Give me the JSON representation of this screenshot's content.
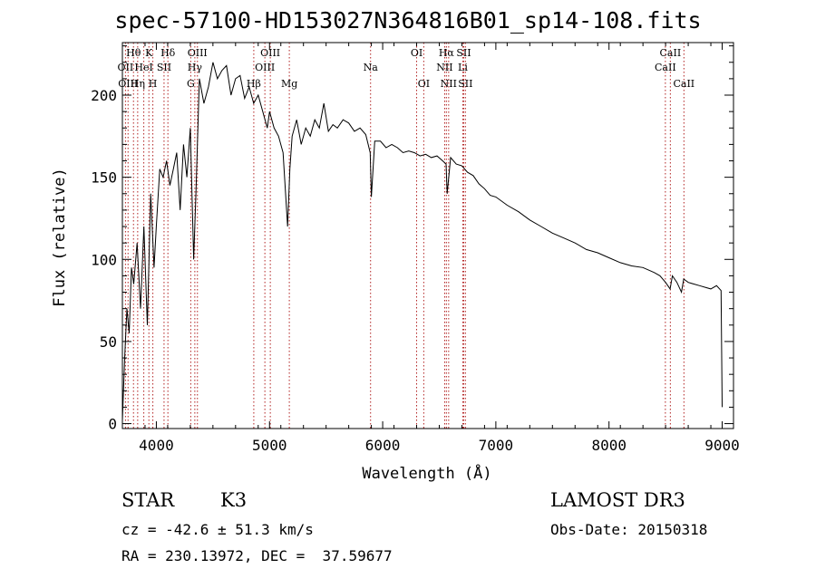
{
  "chart_data": {
    "type": "line",
    "title": "spec-57100-HD153027N364816B01_sp14-108.fits",
    "xlabel": "Wavelength (Å)",
    "ylabel": "Flux (relative)",
    "xlim": [
      3700,
      9100
    ],
    "ylim": [
      -3,
      232
    ],
    "x_ticks": [
      4000,
      5000,
      6000,
      7000,
      8000,
      9000
    ],
    "y_ticks": [
      0,
      50,
      100,
      150,
      200
    ],
    "series": [
      {
        "name": "flux",
        "x": [
          3700,
          3720,
          3740,
          3760,
          3780,
          3800,
          3830,
          3860,
          3890,
          3920,
          3950,
          3980,
          4000,
          4030,
          4060,
          4090,
          4120,
          4150,
          4180,
          4210,
          4240,
          4270,
          4300,
          4330,
          4350,
          4380,
          4420,
          4460,
          4500,
          4540,
          4580,
          4620,
          4660,
          4700,
          4740,
          4780,
          4820,
          4860,
          4900,
          4940,
          4980,
          5000,
          5040,
          5080,
          5120,
          5160,
          5180,
          5200,
          5240,
          5280,
          5320,
          5360,
          5400,
          5440,
          5480,
          5520,
          5560,
          5600,
          5650,
          5700,
          5750,
          5800,
          5850,
          5890,
          5900,
          5930,
          5980,
          6030,
          6080,
          6130,
          6180,
          6230,
          6280,
          6330,
          6380,
          6430,
          6480,
          6530,
          6560,
          6570,
          6600,
          6650,
          6700,
          6750,
          6800,
          6850,
          6900,
          6950,
          7000,
          7100,
          7200,
          7300,
          7400,
          7500,
          7600,
          7700,
          7800,
          7900,
          8000,
          8100,
          8200,
          8300,
          8400,
          8450,
          8500,
          8540,
          8560,
          8600,
          8640,
          8660,
          8700,
          8750,
          8800,
          8850,
          8900,
          8950,
          8990,
          9000
        ],
        "values": [
          2,
          40,
          70,
          55,
          95,
          85,
          110,
          70,
          120,
          60,
          140,
          95,
          120,
          155,
          150,
          160,
          145,
          155,
          165,
          130,
          170,
          150,
          180,
          100,
          140,
          210,
          195,
          205,
          220,
          210,
          215,
          218,
          200,
          210,
          212,
          198,
          205,
          195,
          200,
          190,
          180,
          190,
          180,
          175,
          165,
          120,
          155,
          175,
          185,
          170,
          180,
          175,
          185,
          180,
          195,
          178,
          182,
          180,
          185,
          183,
          178,
          180,
          176,
          165,
          138,
          172,
          172,
          168,
          170,
          168,
          165,
          166,
          165,
          163,
          164,
          162,
          163,
          160,
          158,
          140,
          162,
          158,
          157,
          153,
          151,
          146,
          143,
          139,
          138,
          133,
          129,
          124,
          120,
          116,
          113,
          110,
          106,
          104,
          101,
          98,
          96,
          95,
          92,
          90,
          86,
          82,
          90,
          86,
          80,
          88,
          86,
          85,
          84,
          83,
          82,
          84,
          81,
          10
        ]
      }
    ],
    "lines": [
      {
        "name": "Hθ",
        "wl": 3798,
        "row": 1
      },
      {
        "name": "OII",
        "wl": 3727,
        "row": 2
      },
      {
        "name": "OIII",
        "wl": 3750,
        "row": 3
      },
      {
        "name": "K",
        "wl": 3934,
        "row": 1
      },
      {
        "name": "HeI",
        "wl": 3889,
        "row": 2
      },
      {
        "name": "Hη",
        "wl": 3835,
        "row": 3
      },
      {
        "name": "Hδ",
        "wl": 4102,
        "row": 1
      },
      {
        "name": "SII",
        "wl": 4068,
        "row": 2
      },
      {
        "name": "H",
        "wl": 3969,
        "row": 3
      },
      {
        "name": "G",
        "wl": 4304,
        "row": 3
      },
      {
        "name": "OIII",
        "wl": 4363,
        "row": 1
      },
      {
        "name": "Hγ",
        "wl": 4340,
        "row": 2
      },
      {
        "name": "Hβ",
        "wl": 4861,
        "row": 3
      },
      {
        "name": "OIII",
        "wl": 5007,
        "row": 1
      },
      {
        "name": "OIII",
        "wl": 4959,
        "row": 2
      },
      {
        "name": "Mg",
        "wl": 5175,
        "row": 3
      },
      {
        "name": "Na",
        "wl": 5893,
        "row": 2
      },
      {
        "name": "OI",
        "wl": 6300,
        "row": 1
      },
      {
        "name": "OI",
        "wl": 6363,
        "row": 3
      },
      {
        "name": "Hα",
        "wl": 6563,
        "row": 1
      },
      {
        "name": "NII",
        "wl": 6548,
        "row": 2
      },
      {
        "name": "NII",
        "wl": 6583,
        "row": 3
      },
      {
        "name": "SII",
        "wl": 6716,
        "row": 1
      },
      {
        "name": "Li",
        "wl": 6708,
        "row": 2
      },
      {
        "name": "SII",
        "wl": 6731,
        "row": 3
      },
      {
        "name": "CaII",
        "wl": 8542,
        "row": 1
      },
      {
        "name": "CaII",
        "wl": 8498,
        "row": 2
      },
      {
        "name": "CaII",
        "wl": 8662,
        "row": 3
      }
    ],
    "line_color": "#b22222"
  },
  "info": {
    "object_type": "STAR",
    "spectral_class": "K3",
    "survey": "LAMOST DR3",
    "redshift": "cz = -42.6 ± 51.3 km/s",
    "obs_date": "Obs-Date: 20150318",
    "coordinates": "RA = 230.13972, DEC =  37.59677"
  }
}
